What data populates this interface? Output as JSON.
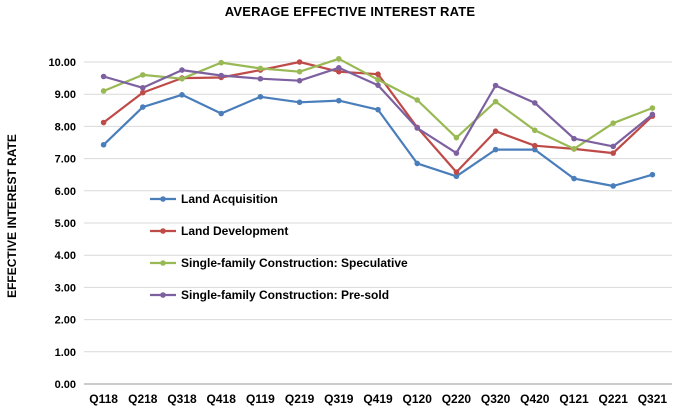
{
  "chart_data": {
    "type": "line",
    "title": "AVERAGE EFFECTIVE INTEREST RATE",
    "xlabel": "",
    "ylabel": "EFFECTIVE INTEREST RATE",
    "categories": [
      "Q118",
      "Q218",
      "Q318",
      "Q418",
      "Q119",
      "Q219",
      "Q319",
      "Q419",
      "Q120",
      "Q220",
      "Q320",
      "Q420",
      "Q121",
      "Q221",
      "Q321"
    ],
    "ylim": [
      0,
      10
    ],
    "yticks": [
      "0.00",
      "1.00",
      "2.00",
      "3.00",
      "4.00",
      "5.00",
      "6.00",
      "7.00",
      "8.00",
      "9.00",
      "10.00"
    ],
    "grid": "horizontal",
    "legend_position": "center-left",
    "series": [
      {
        "name": "Land Acquisition",
        "color": "#4a7ebb",
        "values": [
          7.43,
          8.6,
          8.98,
          8.4,
          8.92,
          8.75,
          8.8,
          8.52,
          6.85,
          6.45,
          7.28,
          7.28,
          6.38,
          6.15,
          6.5
        ]
      },
      {
        "name": "Land Development",
        "color": "#be4b48",
        "values": [
          8.12,
          9.05,
          9.5,
          9.52,
          9.75,
          10.0,
          9.7,
          9.62,
          7.97,
          6.58,
          7.85,
          7.4,
          7.3,
          7.17,
          8.32
        ]
      },
      {
        "name": "Single-family Construction: Speculative",
        "color": "#98b954",
        "values": [
          9.1,
          9.6,
          9.48,
          9.98,
          9.8,
          9.7,
          10.1,
          9.45,
          8.82,
          7.65,
          8.77,
          7.88,
          7.3,
          8.1,
          8.57
        ]
      },
      {
        "name": "Single-family Construction: Pre-sold",
        "color": "#7d60a0",
        "values": [
          9.55,
          9.2,
          9.75,
          9.58,
          9.48,
          9.42,
          9.82,
          9.28,
          7.95,
          7.17,
          9.27,
          8.73,
          7.62,
          7.38,
          8.37
        ]
      }
    ]
  }
}
